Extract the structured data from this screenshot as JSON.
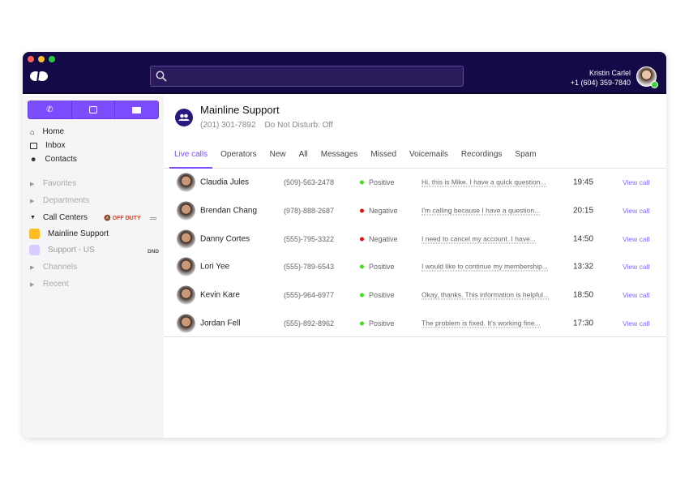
{
  "header": {
    "user_name": "Kristin Carlel",
    "user_phone": "+1 (604) 359-7840",
    "search_placeholder": ""
  },
  "sidebar": {
    "nav": [
      {
        "label": "Home",
        "icon": "home-icon"
      },
      {
        "label": "Inbox",
        "icon": "inbox-icon"
      },
      {
        "label": "Contacts",
        "icon": "contacts-icon"
      }
    ],
    "favorites": "Favorites",
    "departments": "Departments",
    "call_centers": "Call Centers",
    "off_duty": "OFF DUTY",
    "centers": [
      {
        "label": "Mainline Support",
        "color": "#ffbb22"
      },
      {
        "label": "Support - US",
        "badge": "DND",
        "color": "#d8ccff"
      }
    ],
    "channels": "Channels",
    "recent": "Recent"
  },
  "main": {
    "title": "Mainline Support",
    "phone": "(201) 301-7892",
    "dnd": "Do Not Disturb: Off",
    "tabs": [
      "Live calls",
      "Operators",
      "New",
      "All",
      "Messages",
      "Missed",
      "Voicemails",
      "Recordings",
      "Spam"
    ],
    "active_tab": "Live calls",
    "calls": [
      {
        "name": "Claudia Jules",
        "phone": "(509)-563-2478",
        "sentiment": "Positive",
        "transcript": "Hi, this is Mike. I have a quick question...",
        "time": "19:45",
        "action": "View call"
      },
      {
        "name": "Brendan Chang",
        "phone": "(978)-888-2687",
        "sentiment": "Negative",
        "transcript": "I'm calling because I have a question...",
        "time": "20:15",
        "action": "View call"
      },
      {
        "name": "Danny Cortes",
        "phone": "(555)-795-3322",
        "sentiment": "Negative",
        "transcript": "I need to cancel my account. I have...",
        "time": "14:50",
        "action": "View call"
      },
      {
        "name": "Lori Yee",
        "phone": "(555)-789-6543",
        "sentiment": "Positive",
        "transcript": "I would like to continue my membership...",
        "time": "13:32",
        "action": "View call"
      },
      {
        "name": "Kevin Kare",
        "phone": "(555)-964-6977",
        "sentiment": "Positive",
        "transcript": "Okay, thanks. This information is helpful...",
        "time": "18:50",
        "action": "View call"
      },
      {
        "name": "Jordan Fell",
        "phone": "(555)-892-8962",
        "sentiment": "Positive",
        "transcript": "The problem is fixed. It's working fine...",
        "time": "17:30",
        "action": "View call"
      }
    ]
  },
  "colors": {
    "accent": "#7c4dff",
    "titlebar": "#150a48",
    "positive": "#44dd22",
    "negative": "#dd1111"
  }
}
